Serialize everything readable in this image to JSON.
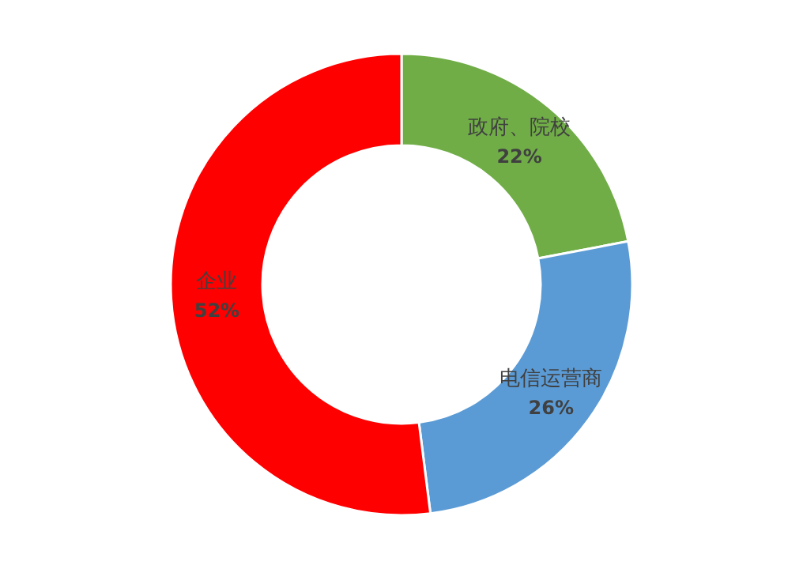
{
  "chart_data": {
    "type": "donut",
    "categories": [
      "政府、院校",
      "电信运营商",
      "企业"
    ],
    "values": [
      22,
      26,
      52
    ],
    "colors": [
      "#70ad47",
      "#5b9bd5",
      "#ff0000"
    ],
    "value_labels": [
      "22%",
      "26%",
      "52%"
    ]
  }
}
